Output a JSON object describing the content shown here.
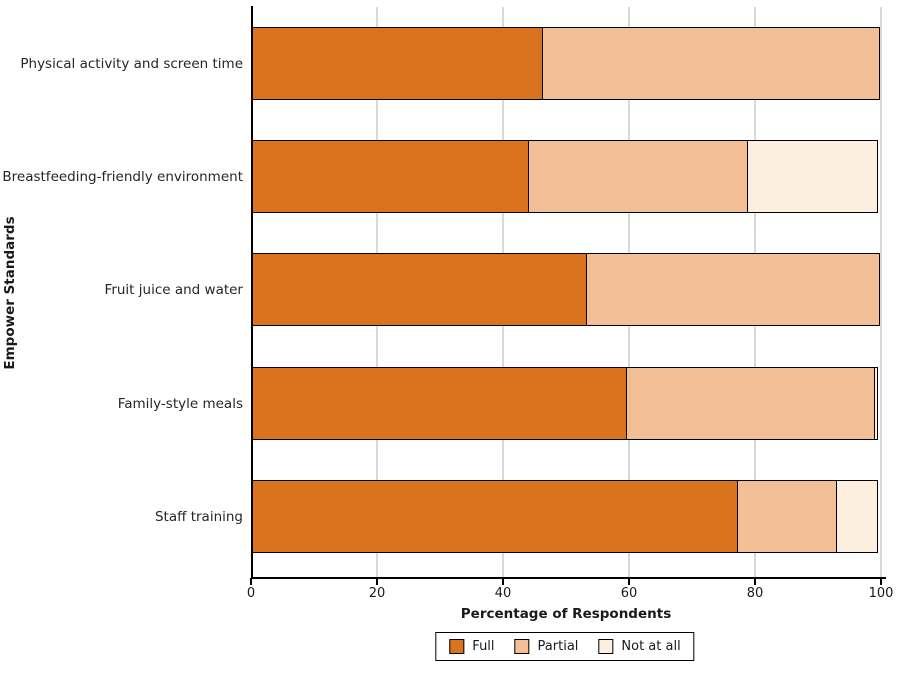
{
  "chart_data": {
    "type": "bar",
    "variant": "horizontal_stacked",
    "title": "",
    "xlabel": "Percentage of Respondents",
    "ylabel": "Empower Standards",
    "xlim": [
      0,
      100
    ],
    "xticks": [
      0,
      20,
      40,
      60,
      80,
      100
    ],
    "grid": "vertical-light-gray",
    "legend_position": "bottom-center",
    "categories": [
      "Physical activity and screen time",
      "Breastfeeding-friendly environment",
      "Fruit juice and water",
      "Family-style meals",
      "Staff training"
    ],
    "series": [
      {
        "name": "Full",
        "color": "#d9731e",
        "values": [
          46.4,
          44.2,
          53.4,
          59.7,
          77.3
        ]
      },
      {
        "name": "Partial",
        "color": "#f3c095",
        "values": [
          53.6,
          35.0,
          46.6,
          39.6,
          16.0
        ]
      },
      {
        "name": "Not at all",
        "color": "#fcefdf",
        "values": [
          0.0,
          20.8,
          0.0,
          0.7,
          6.7
        ]
      }
    ]
  },
  "colors": {
    "background": "#ffffff",
    "axis": "#000000",
    "bar_border": "#000000",
    "gridline": "#d9d9d9",
    "text": "#1a1a1a"
  }
}
